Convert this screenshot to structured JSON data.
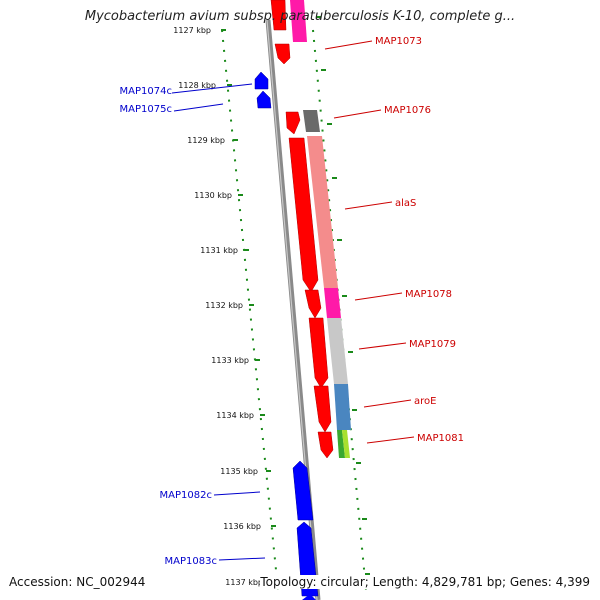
{
  "header": {
    "title": "Mycobacterium avium subsp. paratuberculosis K-10, complete g..."
  },
  "footer": {
    "accession": "Accession: NC_002944",
    "summary": "Topology: circular; Length: 4,829,781 bp; Genes: 4,399"
  },
  "ticks": [
    "1127 kbp",
    "1128 kbp",
    "1129 kbp",
    "1130 kbp",
    "1131 kbp",
    "1132 kbp",
    "1133 kbp",
    "1134 kbp",
    "1135 kbp",
    "1136 kbp",
    "1137 kbp"
  ],
  "forward_labels": [
    "MAP1073",
    "MAP1076",
    "alaS",
    "MAP1078",
    "MAP1079",
    "aroE",
    "MAP1081"
  ],
  "reverse_labels": [
    "MAP1074c",
    "MAP1075c",
    "MAP1082c",
    "MAP1083c"
  ],
  "colors": {
    "forward_gene": "#ff0000",
    "reverse_gene": "#0000ff",
    "backbone": "#808080",
    "tick_dots": "#1a8a1a",
    "forward_label": "#cc0000",
    "reverse_label": "#0000cc"
  }
}
